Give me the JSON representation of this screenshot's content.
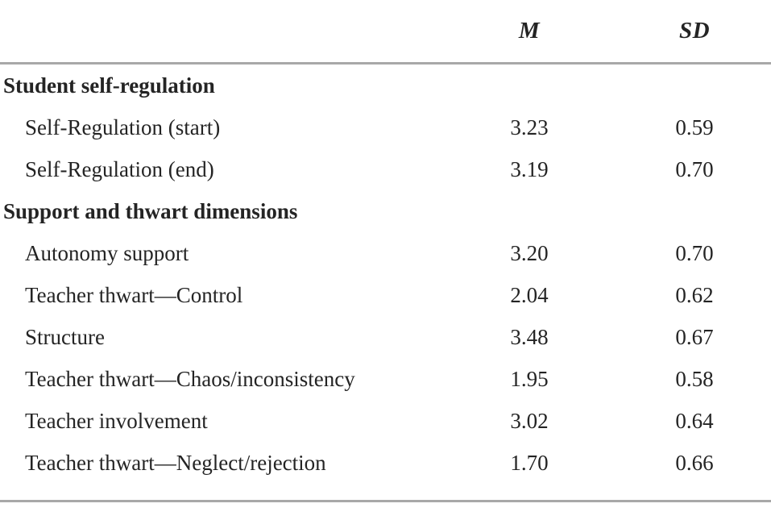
{
  "colors": {
    "rule": "#a8a8a8",
    "text": "#242424",
    "background": "#ffffff"
  },
  "table": {
    "header": {
      "label": "",
      "m": "M",
      "sd": "SD"
    },
    "rows": [
      {
        "type": "section",
        "label": "Student self-regulation"
      },
      {
        "type": "item",
        "label": "Self-Regulation (start)",
        "m": "3.23",
        "sd": "0.59"
      },
      {
        "type": "item",
        "label": "Self-Regulation (end)",
        "m": "3.19",
        "sd": "0.70"
      },
      {
        "type": "section",
        "label": "Support and thwart dimensions"
      },
      {
        "type": "item",
        "label": "Autonomy support",
        "m": "3.20",
        "sd": "0.70"
      },
      {
        "type": "item",
        "label": "Teacher thwart—Control",
        "m": "2.04",
        "sd": "0.62"
      },
      {
        "type": "item",
        "label": "Structure",
        "m": "3.48",
        "sd": "0.67"
      },
      {
        "type": "item",
        "label": "Teacher thwart—Chaos/inconsistency",
        "m": "1.95",
        "sd": "0.58"
      },
      {
        "type": "item",
        "label": "Teacher involvement",
        "m": "3.02",
        "sd": "0.64"
      },
      {
        "type": "item",
        "label": "Teacher thwart—Neglect/rejection",
        "m": "1.70",
        "sd": "0.66"
      }
    ]
  }
}
